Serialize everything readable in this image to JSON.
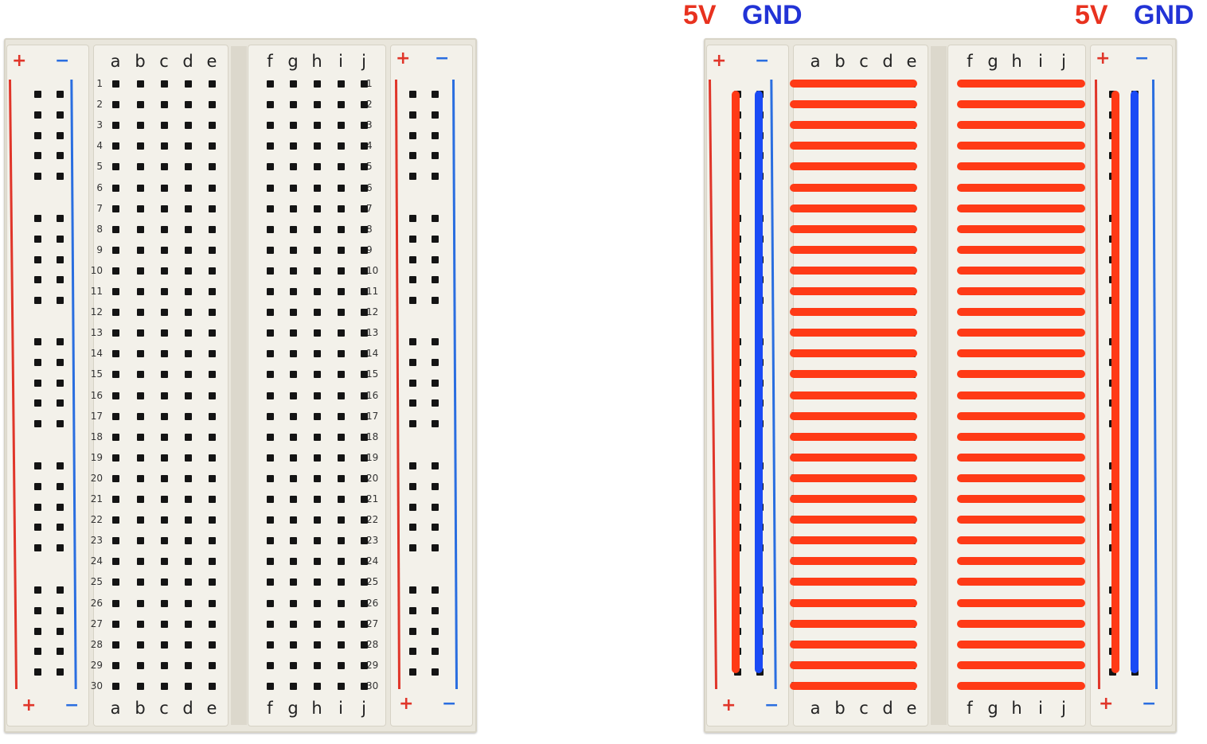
{
  "columns_left": [
    "a",
    "b",
    "c",
    "d",
    "e"
  ],
  "columns_right": [
    "f",
    "g",
    "h",
    "i",
    "j"
  ],
  "rows": [
    "1",
    "2",
    "3",
    "4",
    "5",
    "6",
    "7",
    "8",
    "9",
    "10",
    "11",
    "12",
    "13",
    "14",
    "15",
    "16",
    "17",
    "18",
    "19",
    "20",
    "21",
    "22",
    "23",
    "24",
    "25",
    "26",
    "27",
    "28",
    "29",
    "30"
  ],
  "rail_symbols": {
    "plus": "+",
    "minus": "−"
  },
  "labels": {
    "left_5v": "5V",
    "left_gnd": "GND",
    "right_5v": "5V",
    "right_gnd": "GND"
  },
  "colors": {
    "positive": "#e0362a",
    "negative": "#2a6ee0",
    "connection": "#ff3a16",
    "gnd_connection": "#1a4af5",
    "label_5v": "#e8321f",
    "label_gnd": "#2233d6"
  }
}
